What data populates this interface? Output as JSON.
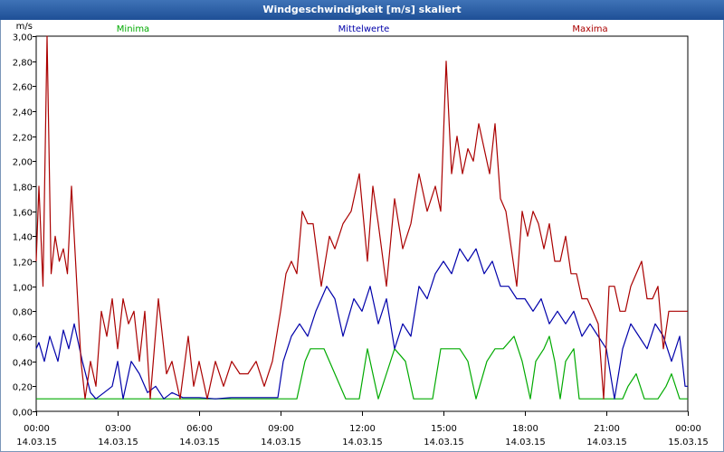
{
  "window": {
    "title": "Windgeschwindigkeit [m/s] skaliert"
  },
  "chart_data": {
    "type": "line",
    "title": "Windgeschwindigkeit [m/s] skaliert",
    "ylabel": "m/s",
    "xlabel": "",
    "ylim": [
      0,
      3.0
    ],
    "xlim_hours": [
      0,
      24
    ],
    "grid": true,
    "legend_position": "top",
    "yticks": [
      "0,00",
      "0,20",
      "0,40",
      "0,60",
      "0,80",
      "1,00",
      "1,20",
      "1,40",
      "1,60",
      "1,80",
      "2,00",
      "2,20",
      "2,40",
      "2,60",
      "2,80",
      "3,00"
    ],
    "xticks": [
      {
        "time": "00:00",
        "date": "14.03.15"
      },
      {
        "time": "03:00",
        "date": "14.03.15"
      },
      {
        "time": "06:00",
        "date": "14.03.15"
      },
      {
        "time": "09:00",
        "date": "14.03.15"
      },
      {
        "time": "12:00",
        "date": "14.03.15"
      },
      {
        "time": "15:00",
        "date": "14.03.15"
      },
      {
        "time": "18:00",
        "date": "14.03.15"
      },
      {
        "time": "21:00",
        "date": "14.03.15"
      },
      {
        "time": "00:00",
        "date": "15.03.15"
      }
    ],
    "series": [
      {
        "name": "Minima",
        "color": "#00aa00",
        "hours": [
          0,
          8.9,
          9.2,
          9.6,
          9.9,
          10.1,
          10.4,
          10.6,
          11,
          11.4,
          11.6,
          11.9,
          12.2,
          12.6,
          12.9,
          13.2,
          13.6,
          13.9,
          14.2,
          14.6,
          14.9,
          15.2,
          15.6,
          15.9,
          16.2,
          16.6,
          16.9,
          17.2,
          17.6,
          17.9,
          18.2,
          18.4,
          18.7,
          18.9,
          19.1,
          19.3,
          19.5,
          19.8,
          20,
          21.4,
          21.6,
          21.8,
          22.1,
          22.4,
          22.7,
          22.9,
          23.2,
          23.4,
          23.7,
          24
        ],
        "values": [
          0.1,
          0.1,
          0.1,
          0.1,
          0.4,
          0.5,
          0.5,
          0.5,
          0.3,
          0.1,
          0.1,
          0.1,
          0.5,
          0.1,
          0.3,
          0.5,
          0.4,
          0.1,
          0.1,
          0.1,
          0.5,
          0.5,
          0.5,
          0.4,
          0.1,
          0.4,
          0.5,
          0.5,
          0.6,
          0.4,
          0.1,
          0.4,
          0.5,
          0.6,
          0.4,
          0.1,
          0.4,
          0.5,
          0.1,
          0.1,
          0.1,
          0.2,
          0.3,
          0.1,
          0.1,
          0.1,
          0.2,
          0.3,
          0.1,
          0.1
        ]
      },
      {
        "name": "Mittelwerte",
        "color": "#0000aa",
        "hours": [
          0,
          0.1,
          0.3,
          0.5,
          0.8,
          1.0,
          1.2,
          1.4,
          1.7,
          2.0,
          2.2,
          2.5,
          2.8,
          3.0,
          3.2,
          3.5,
          3.8,
          4.1,
          4.4,
          4.7,
          5.0,
          5.4,
          6.0,
          6.6,
          7.2,
          7.8,
          8.4,
          8.9,
          9.1,
          9.4,
          9.7,
          10.0,
          10.3,
          10.7,
          11.0,
          11.3,
          11.7,
          12.0,
          12.3,
          12.6,
          12.9,
          13.2,
          13.5,
          13.8,
          14.1,
          14.4,
          14.7,
          15.0,
          15.3,
          15.6,
          15.9,
          16.2,
          16.5,
          16.8,
          17.1,
          17.4,
          17.7,
          18.0,
          18.3,
          18.6,
          18.9,
          19.2,
          19.5,
          19.8,
          20.1,
          20.4,
          20.7,
          21.0,
          21.3,
          21.6,
          21.9,
          22.2,
          22.5,
          22.8,
          23.1,
          23.4,
          23.7,
          23.9,
          24
        ],
        "values": [
          0.5,
          0.55,
          0.4,
          0.6,
          0.4,
          0.65,
          0.5,
          0.7,
          0.4,
          0.15,
          0.1,
          0.15,
          0.2,
          0.4,
          0.1,
          0.4,
          0.3,
          0.15,
          0.2,
          0.1,
          0.15,
          0.11,
          0.11,
          0.1,
          0.11,
          0.11,
          0.11,
          0.11,
          0.4,
          0.6,
          0.7,
          0.6,
          0.8,
          1.0,
          0.9,
          0.6,
          0.9,
          0.8,
          1.0,
          0.7,
          0.9,
          0.5,
          0.7,
          0.6,
          1.0,
          0.9,
          1.1,
          1.2,
          1.1,
          1.3,
          1.2,
          1.3,
          1.1,
          1.2,
          1.0,
          1.0,
          0.9,
          0.9,
          0.8,
          0.9,
          0.7,
          0.8,
          0.7,
          0.8,
          0.6,
          0.7,
          0.6,
          0.5,
          0.1,
          0.5,
          0.7,
          0.6,
          0.5,
          0.7,
          0.6,
          0.4,
          0.6,
          0.2,
          0.2
        ]
      },
      {
        "name": "Maxima",
        "color": "#aa0000",
        "hours": [
          0,
          0.1,
          0.25,
          0.4,
          0.55,
          0.7,
          0.85,
          1.0,
          1.15,
          1.3,
          1.5,
          1.65,
          1.8,
          2.0,
          2.2,
          2.4,
          2.6,
          2.8,
          3.0,
          3.2,
          3.4,
          3.6,
          3.8,
          4.0,
          4.2,
          4.5,
          4.8,
          5.0,
          5.3,
          5.6,
          5.8,
          6.0,
          6.3,
          6.6,
          6.9,
          7.2,
          7.5,
          7.8,
          8.1,
          8.4,
          8.7,
          9.0,
          9.2,
          9.4,
          9.6,
          9.8,
          10.0,
          10.2,
          10.5,
          10.8,
          11.0,
          11.3,
          11.6,
          11.9,
          12.2,
          12.4,
          12.6,
          12.9,
          13.2,
          13.5,
          13.8,
          14.1,
          14.4,
          14.7,
          14.9,
          15.1,
          15.3,
          15.5,
          15.7,
          15.9,
          16.1,
          16.3,
          16.5,
          16.7,
          16.9,
          17.1,
          17.3,
          17.5,
          17.7,
          17.9,
          18.1,
          18.3,
          18.5,
          18.7,
          18.9,
          19.1,
          19.3,
          19.5,
          19.7,
          19.9,
          20.1,
          20.3,
          20.5,
          20.7,
          20.9,
          21.1,
          21.3,
          21.5,
          21.7,
          21.9,
          22.1,
          22.3,
          22.5,
          22.7,
          22.9,
          23.1,
          23.3,
          23.5,
          23.7,
          23.9,
          24
        ],
        "values": [
          1.2,
          1.8,
          1.0,
          3.0,
          1.1,
          1.4,
          1.2,
          1.3,
          1.1,
          1.8,
          1.0,
          0.4,
          0.1,
          0.4,
          0.2,
          0.8,
          0.6,
          0.9,
          0.5,
          0.9,
          0.7,
          0.8,
          0.4,
          0.8,
          0.1,
          0.9,
          0.3,
          0.4,
          0.1,
          0.6,
          0.2,
          0.4,
          0.1,
          0.4,
          0.2,
          0.4,
          0.3,
          0.3,
          0.4,
          0.2,
          0.4,
          0.8,
          1.1,
          1.2,
          1.1,
          1.6,
          1.5,
          1.5,
          1.0,
          1.4,
          1.3,
          1.5,
          1.6,
          1.9,
          1.2,
          1.8,
          1.5,
          1.0,
          1.7,
          1.3,
          1.5,
          1.9,
          1.6,
          1.8,
          1.6,
          2.8,
          1.9,
          2.2,
          1.9,
          2.1,
          2.0,
          2.3,
          2.1,
          1.9,
          2.3,
          1.7,
          1.6,
          1.3,
          1.0,
          1.6,
          1.4,
          1.6,
          1.5,
          1.3,
          1.5,
          1.2,
          1.2,
          1.4,
          1.1,
          1.1,
          0.9,
          0.9,
          0.8,
          0.7,
          0.1,
          1.0,
          1.0,
          0.8,
          0.8,
          1.0,
          1.1,
          1.2,
          0.9,
          0.9,
          1.0,
          0.5,
          0.8,
          0.8,
          0.8,
          0.8,
          0.8
        ]
      }
    ]
  }
}
